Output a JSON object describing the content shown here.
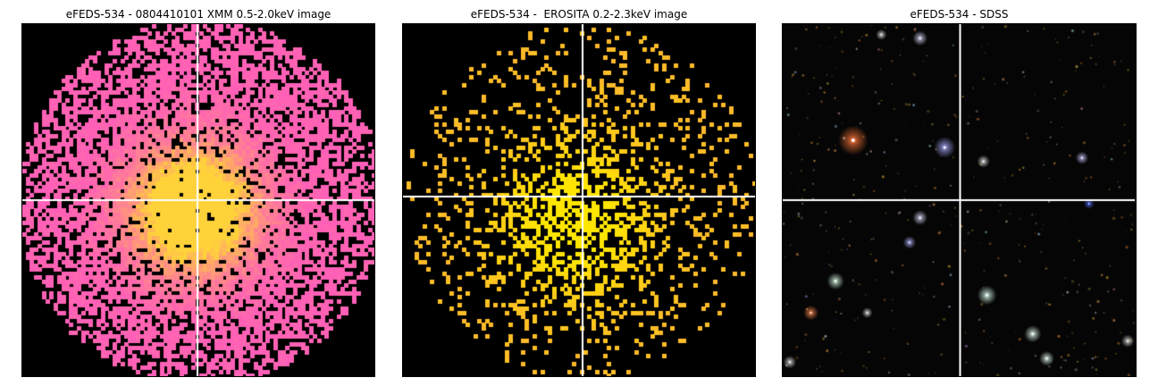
{
  "panels": [
    {
      "title": "eFEDS-534 - 0804410101 XMM 0.5-2.0keV image",
      "kind": "xmm"
    },
    {
      "title": "eFEDS-534 -  EROSITA 0.2-2.3keV image",
      "kind": "erosita"
    },
    {
      "title": "eFEDS-534 - SDSS",
      "kind": "sdss"
    }
  ],
  "colors": {
    "background": "#000000",
    "xmm_low": "#ff5fb8",
    "xmm_high": "#ffd23a",
    "erosita_low": "#ffb62e",
    "erosita_high": "#ffe600",
    "crosshair": "#ffffff"
  }
}
